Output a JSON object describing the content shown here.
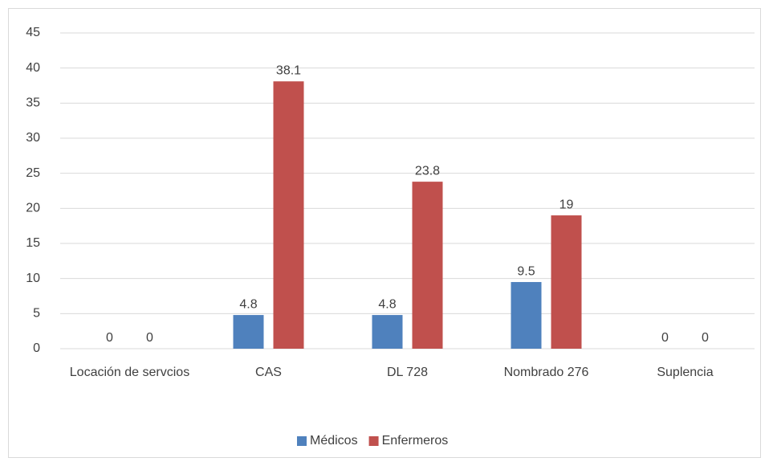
{
  "chart_data": {
    "type": "bar",
    "categories": [
      "Locación de servcios",
      "CAS",
      "DL 728",
      "Nombrado 276",
      "Suplencia"
    ],
    "series": [
      {
        "name": "Médicos",
        "color": "#4f81bd",
        "values": [
          0,
          4.8,
          4.8,
          9.5,
          0
        ]
      },
      {
        "name": "Enfermeros",
        "color": "#c0504d",
        "values": [
          0,
          38.1,
          23.8,
          19,
          0
        ]
      }
    ],
    "ylim": [
      0,
      45
    ],
    "yticks": [
      0,
      5,
      10,
      15,
      20,
      25,
      30,
      35,
      40,
      45
    ],
    "grid": true,
    "legend": "bottom"
  }
}
